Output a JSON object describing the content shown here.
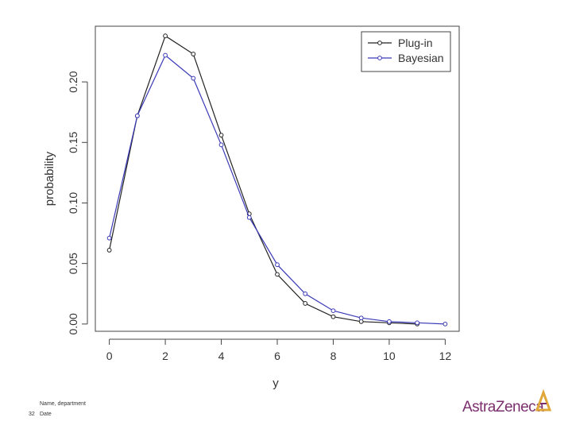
{
  "chart_data": {
    "type": "line",
    "xlabel": "y",
    "ylabel": "probability",
    "xlim": [
      -0.5,
      12.5
    ],
    "ylim": [
      -0.006,
      0.246
    ],
    "xticks": [
      "0",
      "2",
      "4",
      "6",
      "8",
      "10",
      "12"
    ],
    "yticks": [
      "0.00",
      "0.05",
      "0.10",
      "0.15",
      "0.20"
    ],
    "grid": false,
    "legend_position": "top-right",
    "series": [
      {
        "name": "Plug-in",
        "color": "#222222",
        "x": [
          0,
          1,
          2,
          3,
          4,
          5,
          6,
          7,
          8,
          9,
          10,
          11
        ],
        "y": [
          0.061,
          0.172,
          0.238,
          0.223,
          0.156,
          0.091,
          0.041,
          0.017,
          0.006,
          0.002,
          0.001,
          0.0
        ]
      },
      {
        "name": "Bayesian",
        "color": "#3a3ab8",
        "x": [
          0,
          1,
          2,
          3,
          4,
          5,
          6,
          7,
          8,
          9,
          10,
          11,
          12
        ],
        "y": [
          0.071,
          0.172,
          0.222,
          0.203,
          0.148,
          0.088,
          0.049,
          0.025,
          0.011,
          0.005,
          0.002,
          0.001,
          0.0
        ]
      }
    ]
  },
  "footer": {
    "name_department": "Name, department",
    "page_number": "32",
    "date": "Date"
  },
  "logo": {
    "text": "AstraZeneca",
    "color": "#7a2e6e",
    "mark_color": "#e0a83a"
  }
}
